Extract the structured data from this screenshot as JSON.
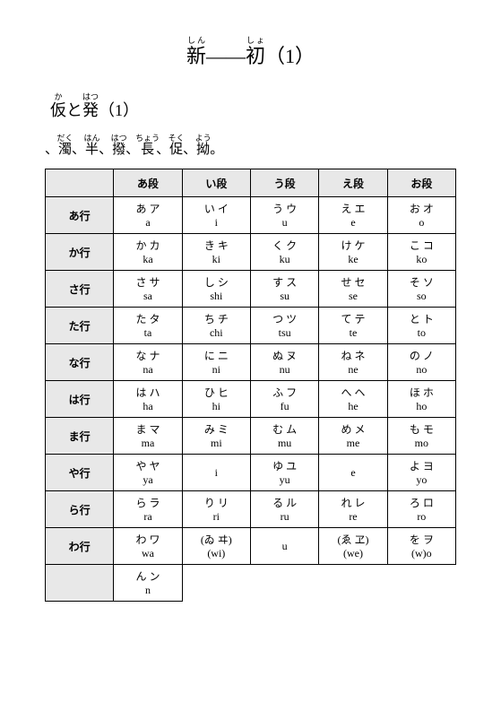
{
  "title": {
    "ruby1": "しん",
    "char1": "新",
    "dash": "——",
    "ruby2": "しょ",
    "char2": "初",
    "suffix": "（1）"
  },
  "subtitle": {
    "ruby1": "か",
    "char1": "仮",
    "mid": "と",
    "ruby2": "はつ",
    "char2": "発",
    "suffix": "（1）"
  },
  "notes": {
    "items": [
      {
        "ruby": "だく",
        "char": "濁"
      },
      {
        "ruby": "はん",
        "char": "半"
      },
      {
        "ruby": "はつ",
        "char": "撥"
      },
      {
        "ruby": "ちょう",
        "char": "長"
      },
      {
        "ruby": "そく",
        "char": "促"
      },
      {
        "ruby": "よう",
        "char": "拗"
      }
    ]
  },
  "columns": [
    "あ段",
    "い段",
    "う段",
    "え段",
    "お段"
  ],
  "rows": [
    {
      "hdr": "あ行",
      "cells": [
        {
          "k": "あ ア",
          "r": "a"
        },
        {
          "k": "い イ",
          "r": "i"
        },
        {
          "k": "う ウ",
          "r": "u"
        },
        {
          "k": "え エ",
          "r": "e"
        },
        {
          "k": "お オ",
          "r": "o"
        }
      ]
    },
    {
      "hdr": "か行",
      "cells": [
        {
          "k": "か カ",
          "r": "ka"
        },
        {
          "k": "き キ",
          "r": "ki"
        },
        {
          "k": "く ク",
          "r": "ku"
        },
        {
          "k": "け ケ",
          "r": "ke"
        },
        {
          "k": "こ コ",
          "r": "ko"
        }
      ]
    },
    {
      "hdr": "さ行",
      "cells": [
        {
          "k": "さ サ",
          "r": "sa"
        },
        {
          "k": "し シ",
          "r": "shi"
        },
        {
          "k": "す ス",
          "r": "su"
        },
        {
          "k": "せ セ",
          "r": "se"
        },
        {
          "k": "そ ソ",
          "r": "so"
        }
      ]
    },
    {
      "hdr": "た行",
      "cells": [
        {
          "k": "た タ",
          "r": "ta"
        },
        {
          "k": "ち チ",
          "r": "chi"
        },
        {
          "k": "つ ツ",
          "r": "tsu"
        },
        {
          "k": "て テ",
          "r": "te"
        },
        {
          "k": "と ト",
          "r": "to"
        }
      ]
    },
    {
      "hdr": "な行",
      "cells": [
        {
          "k": "な ナ",
          "r": "na"
        },
        {
          "k": "に ニ",
          "r": "ni"
        },
        {
          "k": "ぬ ヌ",
          "r": "nu"
        },
        {
          "k": "ね ネ",
          "r": "ne"
        },
        {
          "k": "の ノ",
          "r": "no"
        }
      ]
    },
    {
      "hdr": "は行",
      "cells": [
        {
          "k": "は ハ",
          "r": "ha"
        },
        {
          "k": "ひ ヒ",
          "r": "hi"
        },
        {
          "k": "ふ フ",
          "r": "fu"
        },
        {
          "k": "へ ヘ",
          "r": "he"
        },
        {
          "k": "ほ ホ",
          "r": "ho"
        }
      ]
    },
    {
      "hdr": "ま行",
      "cells": [
        {
          "k": "ま マ",
          "r": "ma"
        },
        {
          "k": "み ミ",
          "r": "mi"
        },
        {
          "k": "む ム",
          "r": "mu"
        },
        {
          "k": "め メ",
          "r": "me"
        },
        {
          "k": "も モ",
          "r": "mo"
        }
      ]
    },
    {
      "hdr": "や行",
      "cells": [
        {
          "k": "や ヤ",
          "r": "ya"
        },
        {
          "k": "",
          "r": "i"
        },
        {
          "k": "ゆ ユ",
          "r": "yu"
        },
        {
          "k": "",
          "r": "e"
        },
        {
          "k": "よ ヨ",
          "r": "yo"
        }
      ]
    },
    {
      "hdr": "ら行",
      "cells": [
        {
          "k": "ら ラ",
          "r": "ra"
        },
        {
          "k": "り リ",
          "r": "ri"
        },
        {
          "k": "る ル",
          "r": "ru"
        },
        {
          "k": "れ レ",
          "r": "re"
        },
        {
          "k": "ろ ロ",
          "r": "ro"
        }
      ]
    },
    {
      "hdr": "わ行",
      "cells": [
        {
          "k": "わ ワ",
          "r": "wa"
        },
        {
          "k": "(ゐ ヰ)",
          "r": "(wi)"
        },
        {
          "k": "",
          "r": "u"
        },
        {
          "k": "(ゑ ヱ)",
          "r": "(we)"
        },
        {
          "k": "を ヲ",
          "r": "(w)o"
        }
      ]
    },
    {
      "hdr": "",
      "cells": [
        {
          "k": "ん ン",
          "r": "n"
        }
      ]
    }
  ]
}
